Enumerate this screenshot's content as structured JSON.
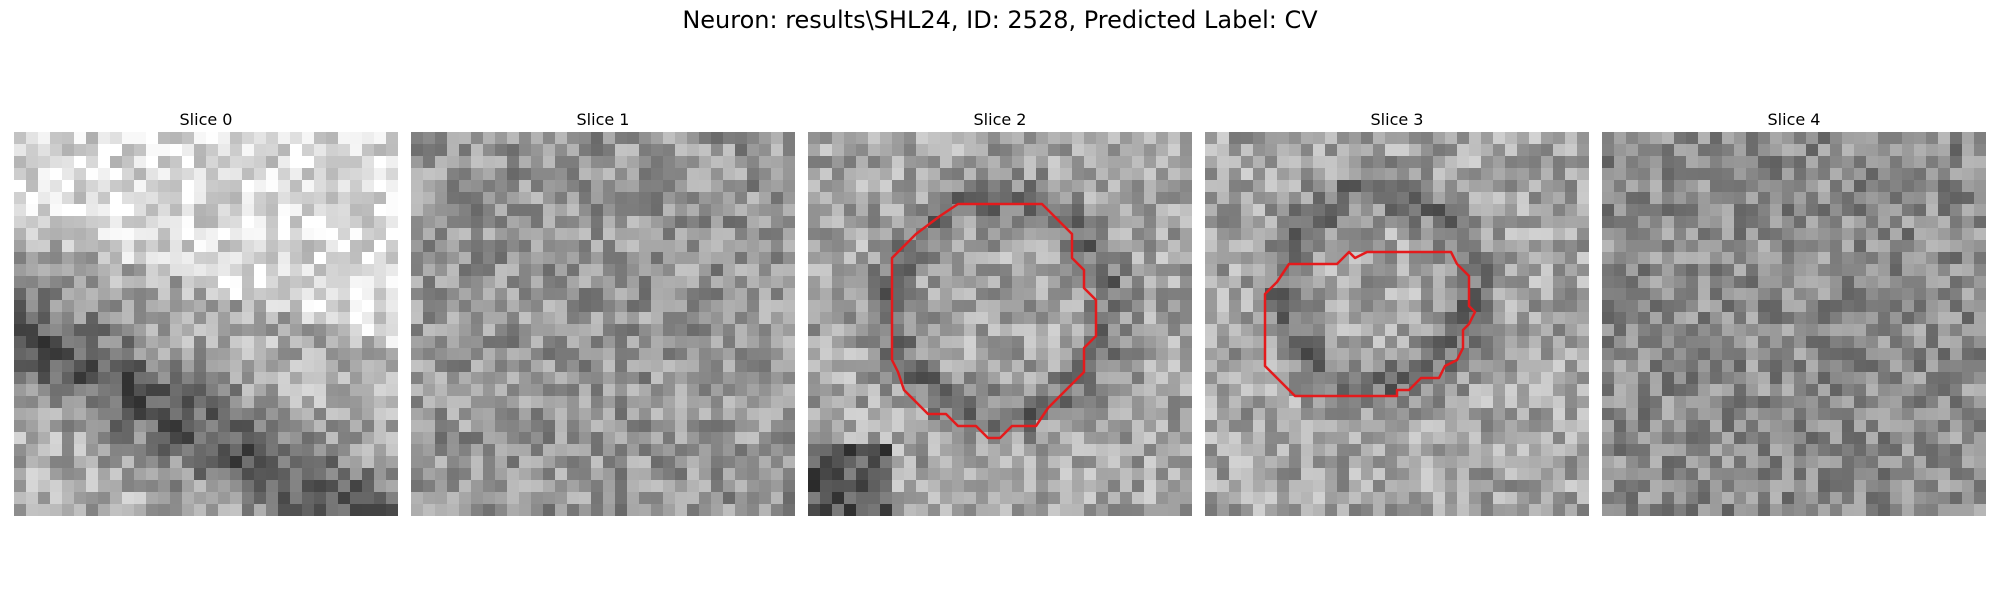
{
  "figure": {
    "title": "Neuron: results\\SHL24, ID: 2528, Predicted Label: CV"
  },
  "grid": {
    "rows": 32,
    "cols": 32
  },
  "colors": {
    "contour": "#e41a1c",
    "background": "#ffffff"
  },
  "slices": [
    {
      "title": "Slice 0",
      "has_contour": false,
      "pattern": "diagonal-band"
    },
    {
      "title": "Slice 1",
      "has_contour": false,
      "pattern": "noise"
    },
    {
      "title": "Slice 2",
      "has_contour": true,
      "pattern": "round-vesicle"
    },
    {
      "title": "Slice 3",
      "has_contour": true,
      "pattern": "round-vesicle-small"
    },
    {
      "title": "Slice 4",
      "has_contour": false,
      "pattern": "noise-dark"
    }
  ]
}
